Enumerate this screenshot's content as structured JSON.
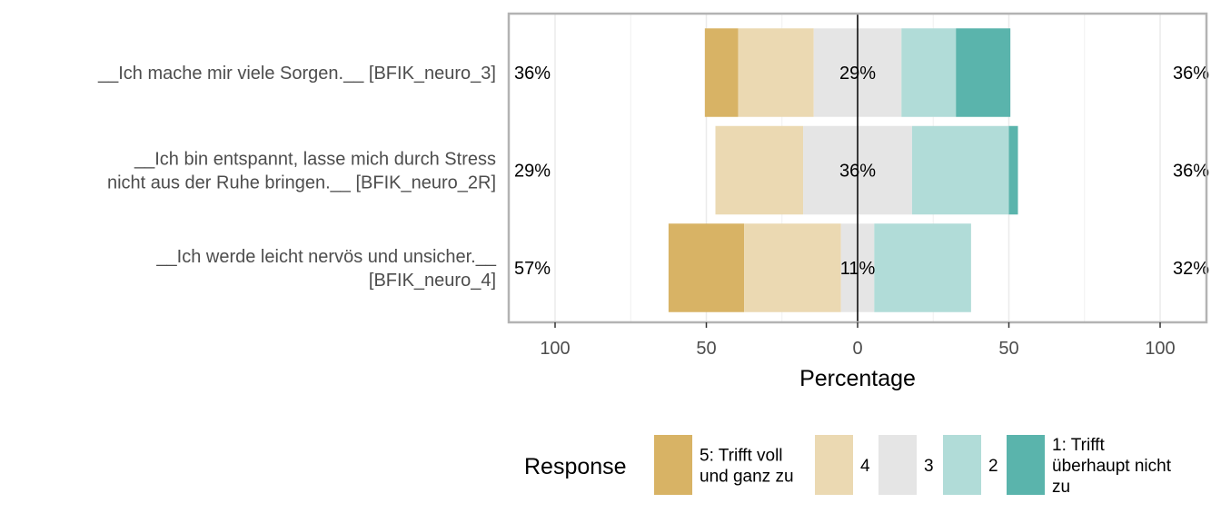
{
  "chart_data": {
    "type": "bar",
    "orientation": "horizontal-diverging",
    "categories": [
      [
        "__Ich mache mir viele Sorgen.__ [BFIK_neuro_3]"
      ],
      [
        "__Ich bin entspannt, lasse mich durch Stress",
        "nicht aus der Ruhe bringen.__ [BFIK_neuro_2R]"
      ],
      [
        "__Ich werde leicht nervös und unsicher.__",
        "[BFIK_neuro_4]"
      ]
    ],
    "series": [
      {
        "name": "5: Trifft voll und ganz zu",
        "legend_lines": [
          "5: Trifft voll",
          "und ganz zu"
        ],
        "color": "#D8B365",
        "values": [
          11,
          0,
          25
        ]
      },
      {
        "name": "4",
        "legend_lines": [
          "4"
        ],
        "color": "#EBD9B2",
        "values": [
          25,
          29,
          32
        ]
      },
      {
        "name": "3",
        "legend_lines": [
          "3"
        ],
        "color": "#E5E5E5",
        "values": [
          29,
          36,
          11
        ]
      },
      {
        "name": "2",
        "legend_lines": [
          "2"
        ],
        "color": "#B1DCD8",
        "values": [
          18,
          32,
          32
        ]
      },
      {
        "name": "1: Trifft überhaupt nicht zu",
        "legend_lines": [
          "1: Trifft",
          "überhaupt nicht",
          "zu"
        ],
        "color": "#5AB4AC",
        "values": [
          18,
          3,
          0
        ]
      }
    ],
    "left_labels": [
      "36%",
      "29%",
      "57%"
    ],
    "center_labels": [
      "29%",
      "36%",
      "11%"
    ],
    "right_labels": [
      "36%",
      "36%",
      "32%"
    ],
    "x_ticks": [
      -100,
      -50,
      0,
      50,
      100
    ],
    "x_tick_labels": [
      "100",
      "50",
      "0",
      "50",
      "100"
    ],
    "xlim": [
      -100,
      100
    ],
    "xlabel": "Percentage",
    "legend_title": "Response",
    "legend_position": "bottom",
    "grid": true
  }
}
